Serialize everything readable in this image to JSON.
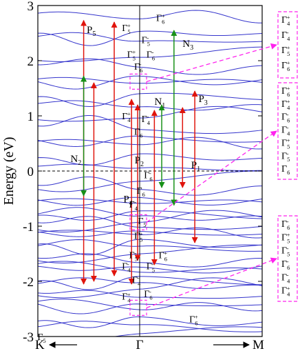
{
  "chart_data": {
    "type": "line",
    "title": "",
    "ylabel": "Energy (eV)",
    "ylim": [
      -3,
      3
    ],
    "y_ticks": [
      "-3",
      "-2",
      "-1",
      "0",
      "1",
      "2",
      "3"
    ],
    "x_ticks": [
      "K",
      "Γ",
      "M"
    ],
    "fermi_level": 0,
    "grid": false,
    "colors": {
      "bands": "#3333cc",
      "p_transitions": "#e0140c",
      "n_transitions": "#189018",
      "highlight_boxes": "#ff22ee",
      "fermi_line": "#000000"
    },
    "bands_at_gamma_eV": [
      -2.95,
      -2.82,
      -2.68,
      -2.52,
      -2.38,
      -2.25,
      -2.13,
      -2.05,
      -1.95,
      -1.85,
      -1.72,
      -1.62,
      -1.48,
      -1.38,
      -1.28,
      -1.18,
      -1.08,
      -0.98,
      -0.9,
      -0.82,
      -0.76,
      -0.62,
      -0.48,
      -0.3,
      -0.15,
      0.06,
      0.28,
      0.44,
      0.62,
      0.78,
      1.0,
      1.18,
      1.38,
      1.55,
      1.7,
      1.9,
      2.1,
      2.38,
      2.52,
      2.72
    ],
    "transitions": [
      {
        "label": "P1",
        "color": "p",
        "x": 0.35,
        "from": -0.3,
        "to": 1.15
      },
      {
        "label": "P2",
        "color": "p",
        "x": 0.12,
        "from": -1.7,
        "to": 1.1
      },
      {
        "label": "P3",
        "color": "p",
        "x": 0.45,
        "from": -1.3,
        "to": 1.45
      },
      {
        "label": "P4",
        "color": "p",
        "x": -0.08,
        "from": -2.05,
        "to": 1.3
      },
      {
        "label": "P5",
        "color": "p",
        "x": -0.55,
        "from": -2.05,
        "to": 2.73
      },
      {
        "label": "",
        "color": "p",
        "x": -0.45,
        "from": -2.0,
        "to": 1.6
      },
      {
        "label": "",
        "color": "p",
        "x": -0.25,
        "from": -1.9,
        "to": 2.7
      },
      {
        "label": "",
        "color": "p",
        "x": -0.02,
        "from": -1.62,
        "to": 1.2
      },
      {
        "label": "N1",
        "color": "n",
        "x": 0.18,
        "from": -0.3,
        "to": 1.2
      },
      {
        "label": "N2",
        "color": "n",
        "x": -0.55,
        "from": -0.45,
        "to": 1.72
      },
      {
        "label": "N3",
        "color": "n",
        "x": 0.28,
        "from": -0.62,
        "to": 2.55
      }
    ],
    "labels": [
      {
        "text": "P1",
        "color": "p",
        "x": 0.42,
        "y": 0.05
      },
      {
        "text": "P2",
        "color": "p",
        "x": -0.05,
        "y": 0.14
      },
      {
        "text": "P3",
        "color": "p",
        "x": 0.48,
        "y": 1.25
      },
      {
        "text": "P4",
        "color": "p",
        "x": -0.16,
        "y": -0.57
      },
      {
        "text": "P5",
        "color": "p",
        "x": -0.52,
        "y": 2.5
      },
      {
        "text": "N1",
        "color": "n",
        "x": 0.12,
        "y": 1.2
      },
      {
        "text": "N2",
        "color": "n",
        "x": -0.68,
        "y": 0.16
      },
      {
        "text": "N3",
        "color": "n",
        "x": 0.35,
        "y": 2.25
      }
    ],
    "gamma_labels": [
      {
        "irrep": "6",
        "parity": "+",
        "x": 0.18,
        "y": 2.78
      },
      {
        "irrep": "5",
        "parity": "+",
        "x": -0.12,
        "y": 2.6
      },
      {
        "irrep": "5",
        "parity": "-",
        "x": 0.06,
        "y": 2.38
      },
      {
        "irrep": "5",
        "parity": "+",
        "x": -0.07,
        "y": 2.12
      },
      {
        "irrep": "6",
        "parity": "-",
        "x": 0.1,
        "y": 2.12
      },
      {
        "irrep": "6",
        "parity": "-",
        "x": 0.0,
        "y": 1.9
      },
      {
        "irrep": "4",
        "parity": "+",
        "x": -0.12,
        "y": 1.0
      },
      {
        "irrep": "4",
        "parity": "-",
        "x": 0.06,
        "y": 0.95
      },
      {
        "irrep": "6",
        "parity": "",
        "x": 0.0,
        "y": 0.72
      },
      {
        "irrep": "6",
        "parity": "-",
        "x": 0.08,
        "y": -0.07
      },
      {
        "irrep": "6",
        "parity": "",
        "x": 0.02,
        "y": -0.35
      },
      {
        "irrep": "4",
        "parity": "-",
        "x": -0.05,
        "y": -0.6
      },
      {
        "irrep": "5",
        "parity": "",
        "x": 0.03,
        "y": -0.9
      },
      {
        "irrep": "5",
        "parity": "+",
        "x": 0.0,
        "y": -1.17
      },
      {
        "irrep": "5",
        "parity": "-",
        "x": -0.05,
        "y": -1.52
      },
      {
        "irrep": "6",
        "parity": "+",
        "x": 0.2,
        "y": -1.52
      },
      {
        "irrep": "4",
        "parity": "-",
        "x": -0.12,
        "y": -1.72
      },
      {
        "irrep": "5",
        "parity": "-",
        "x": 0.1,
        "y": -1.72
      },
      {
        "irrep": "4",
        "parity": "-",
        "x": -0.02,
        "y": -1.97
      },
      {
        "irrep": "4",
        "parity": "+",
        "x": -0.12,
        "y": -2.27
      },
      {
        "irrep": "6",
        "parity": "-",
        "x": 0.08,
        "y": -2.22
      },
      {
        "irrep": "6",
        "parity": "+",
        "x": 0.45,
        "y": -2.68
      },
      {
        "irrep": "5",
        "parity": "",
        "x": -0.95,
        "y": -3.0
      }
    ],
    "highlight_boxes": [
      {
        "y_center": 1.62,
        "target_legend": 0
      },
      {
        "y_center": -0.93,
        "target_legend": 1
      },
      {
        "y_center": -2.48,
        "target_legend": 2
      }
    ],
    "legend_boxes": [
      {
        "items": [
          {
            "irrep": "4",
            "parity": "+"
          },
          {
            "irrep": "4",
            "parity": "-"
          },
          {
            "irrep": "5",
            "parity": "+"
          },
          {
            "irrep": "6",
            "parity": "+"
          }
        ]
      },
      {
        "items": [
          {
            "irrep": "6",
            "parity": "+"
          },
          {
            "irrep": "4",
            "parity": "+"
          },
          {
            "irrep": "6",
            "parity": "-"
          },
          {
            "irrep": "4",
            "parity": "-"
          },
          {
            "irrep": "5",
            "parity": "+"
          },
          {
            "irrep": "5",
            "parity": "-"
          },
          {
            "irrep": "6",
            "parity": ""
          }
        ]
      },
      {
        "items": [
          {
            "irrep": "6",
            "parity": "-"
          },
          {
            "irrep": "5",
            "parity": "+"
          },
          {
            "irrep": "5",
            "parity": "-"
          },
          {
            "irrep": "6",
            "parity": "-"
          },
          {
            "irrep": "4",
            "parity": "-"
          },
          {
            "irrep": "4",
            "parity": "+"
          }
        ]
      }
    ]
  }
}
